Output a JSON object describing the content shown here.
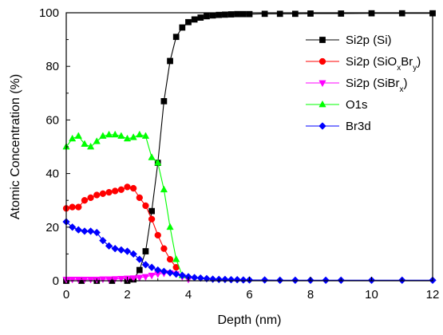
{
  "chart_data": {
    "type": "line",
    "title": "",
    "xlabel": "Depth (nm)",
    "ylabel": "Atomic Concentration (%)",
    "xlim": [
      0,
      12
    ],
    "ylim": [
      0,
      100
    ],
    "x_ticks": [
      0,
      2,
      4,
      6,
      8,
      10,
      12
    ],
    "y_ticks": [
      0,
      20,
      40,
      60,
      80,
      100
    ],
    "grid": false,
    "legend_position": "top-right",
    "series": [
      {
        "name": "Si2p (Si)",
        "label_parts": [
          [
            "Si2p (Si)",
            ""
          ]
        ],
        "color": "#000000",
        "marker": "square",
        "x": [
          0,
          0.5,
          1.0,
          1.5,
          2.0,
          2.2,
          2.4,
          2.6,
          2.8,
          3.0,
          3.2,
          3.4,
          3.6,
          3.8,
          4.0,
          4.2,
          4.4,
          4.6,
          4.8,
          5.0,
          5.2,
          5.4,
          5.6,
          5.8,
          6.0,
          6.5,
          7.0,
          7.5,
          8.0,
          9.0,
          10.0,
          11.0,
          12.0
        ],
        "y": [
          0,
          0,
          0,
          0,
          0,
          0.5,
          4,
          11,
          26,
          44,
          67,
          82,
          91,
          94.5,
          96.5,
          97.5,
          98.2,
          98.7,
          99,
          99.2,
          99.3,
          99.4,
          99.5,
          99.5,
          99.5,
          99.6,
          99.6,
          99.6,
          99.7,
          99.7,
          99.8,
          99.8,
          99.8
        ]
      },
      {
        "name": "Si2p (SiOxBry)",
        "label_parts": [
          [
            "Si2p (SiO",
            ""
          ],
          [
            "x",
            "sub"
          ],
          [
            "Br",
            ""
          ],
          [
            "y",
            "sub"
          ],
          [
            ")",
            ""
          ]
        ],
        "color": "#ff0000",
        "marker": "circle",
        "x": [
          0,
          0.2,
          0.4,
          0.6,
          0.8,
          1.0,
          1.2,
          1.4,
          1.6,
          1.8,
          2.0,
          2.2,
          2.4,
          2.6,
          2.8,
          3.0,
          3.2,
          3.4,
          3.6
        ],
        "y": [
          27,
          27.5,
          27.5,
          30,
          31,
          32,
          32.5,
          33,
          33.5,
          34,
          35,
          34.5,
          31,
          28,
          23,
          17,
          12,
          8,
          5
        ]
      },
      {
        "name": "Si2p (SiBrx)",
        "label_parts": [
          [
            "Si2p (SiBr",
            ""
          ],
          [
            "x",
            "sub"
          ],
          [
            ")",
            ""
          ]
        ],
        "color": "#ff00ff",
        "marker": "triangle-down",
        "x": [
          0,
          0.2,
          0.4,
          0.6,
          0.8,
          1.0,
          1.2,
          1.4,
          1.6,
          1.8,
          2.0,
          2.2,
          2.4,
          2.6,
          2.8,
          3.0,
          3.2,
          3.4,
          3.6,
          3.8,
          4.0
        ],
        "y": [
          0.5,
          0.5,
          0.5,
          0.5,
          0.5,
          0.5,
          0.6,
          0.6,
          0.7,
          0.8,
          0.9,
          1.0,
          1.2,
          1.5,
          2.0,
          2.5,
          2.8,
          2.9,
          2.5,
          1.5,
          0.5
        ]
      },
      {
        "name": "O1s",
        "label_parts": [
          [
            "O1s",
            ""
          ]
        ],
        "color": "#00ff00",
        "marker": "triangle-up",
        "x": [
          0,
          0.2,
          0.4,
          0.6,
          0.8,
          1.0,
          1.2,
          1.4,
          1.6,
          1.8,
          2.0,
          2.2,
          2.4,
          2.6,
          2.8,
          3.0,
          3.2,
          3.4,
          3.6,
          3.8
        ],
        "y": [
          50,
          53,
          54,
          51,
          50,
          52,
          54,
          54.5,
          54.5,
          54,
          53,
          53.5,
          54.5,
          54,
          46,
          44,
          34,
          20,
          8,
          2
        ]
      },
      {
        "name": "Br3d",
        "label_parts": [
          [
            "Br3d",
            ""
          ]
        ],
        "color": "#0000ff",
        "marker": "diamond",
        "x": [
          0,
          0.2,
          0.4,
          0.6,
          0.8,
          1.0,
          1.2,
          1.4,
          1.6,
          1.8,
          2.0,
          2.2,
          2.4,
          2.6,
          2.8,
          3.0,
          3.2,
          3.4,
          3.6,
          3.8,
          4.0,
          4.2,
          4.4,
          4.6,
          4.8,
          5.0,
          5.2,
          5.4,
          5.6,
          5.8,
          6.0,
          6.5,
          7.0,
          7.5,
          8.0,
          8.5,
          9.0,
          10.0,
          11.0,
          12.0
        ],
        "y": [
          22,
          20,
          19,
          18.5,
          18.5,
          18,
          15,
          13,
          12,
          11.5,
          11,
          10,
          8,
          6,
          5,
          4,
          3.5,
          3,
          2.5,
          2,
          1.5,
          1.2,
          1,
          0.8,
          0.6,
          0.5,
          0.5,
          0.4,
          0.4,
          0.3,
          0.3,
          0.3,
          0.2,
          0.2,
          0.2,
          0.2,
          0.2,
          0.2,
          0.2,
          0.2
        ]
      }
    ]
  }
}
